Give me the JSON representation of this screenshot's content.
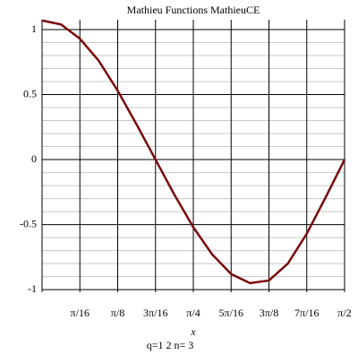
{
  "chart_data": {
    "type": "line",
    "title": "Mathieu Functions   MathieuCE",
    "x_label": "x",
    "caption": "q=1  2 n=  3",
    "x": [
      0,
      0.0982,
      0.1963,
      0.2945,
      0.3927,
      0.4909,
      0.589,
      0.6872,
      0.7854,
      0.8836,
      0.9817,
      1.0799,
      1.1781,
      1.2763,
      1.3744,
      1.4726,
      1.5708
    ],
    "series": [
      {
        "color": "#7a0a0a",
        "values": [
          1.07,
          1.04,
          0.93,
          0.76,
          0.53,
          0.27,
          0.0,
          -0.27,
          -0.52,
          -0.73,
          -0.88,
          -0.95,
          -0.93,
          -0.8,
          -0.57,
          -0.29,
          0.0
        ]
      }
    ],
    "xlim": [
      0,
      1.5708
    ],
    "xticks": [
      {
        "value": 0.19635,
        "label": "π/16"
      },
      {
        "value": 0.3927,
        "label": "π/8"
      },
      {
        "value": 0.58905,
        "label": "3π/16"
      },
      {
        "value": 0.7854,
        "label": "π/4"
      },
      {
        "value": 0.98175,
        "label": "5π/16"
      },
      {
        "value": 1.1781,
        "label": "3π/8"
      },
      {
        "value": 1.37445,
        "label": "7π/16"
      },
      {
        "value": 1.5708,
        "label": "π/2"
      }
    ],
    "ylim": [
      -1.02,
      1.076
    ],
    "yticks": [
      -1,
      -0.5,
      0,
      0.5,
      1
    ],
    "yminorticks": [
      -0.9,
      -0.8,
      -0.7,
      -0.6,
      -0.4,
      -0.3,
      -0.2,
      -0.1,
      0.1,
      0.2,
      0.3,
      0.4,
      0.6,
      0.7,
      0.8,
      0.9
    ],
    "grid": true
  }
}
